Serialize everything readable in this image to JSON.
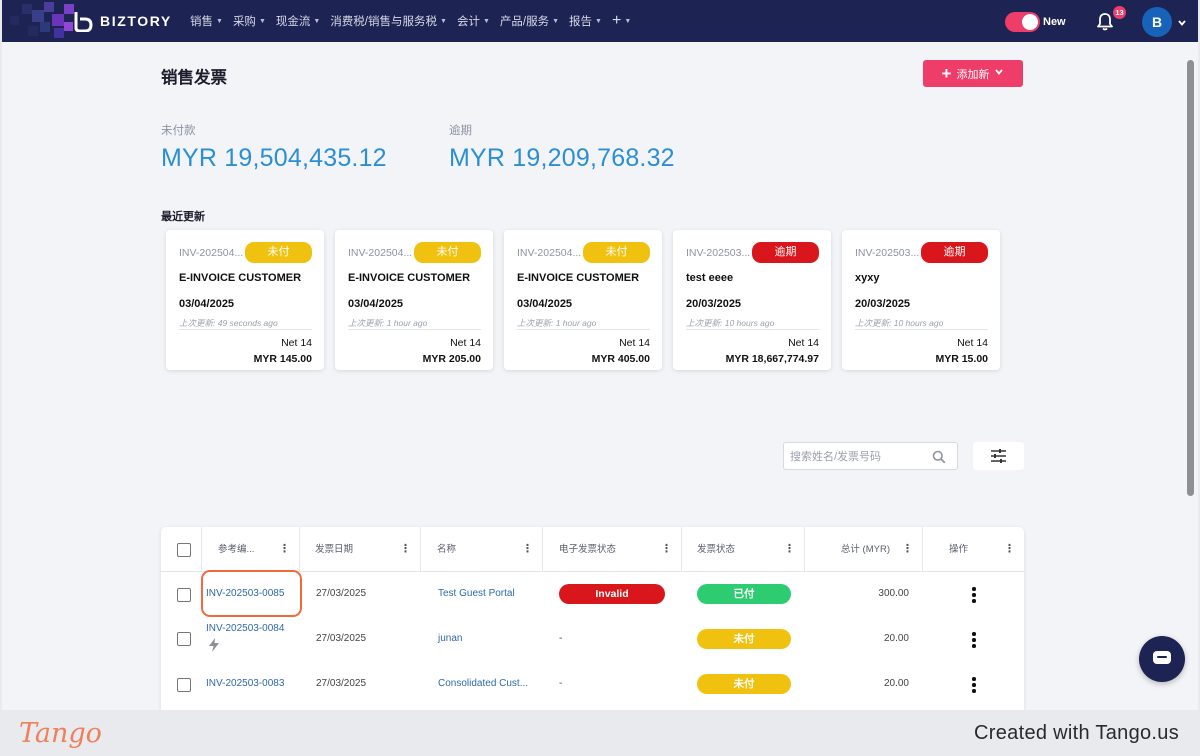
{
  "app": {
    "brand": "BIZTORY"
  },
  "nav": {
    "items": [
      {
        "label": "销售"
      },
      {
        "label": "采购"
      },
      {
        "label": "现金流"
      },
      {
        "label": "消费税/销售与服务税"
      },
      {
        "label": "会计"
      },
      {
        "label": "产品/服务"
      },
      {
        "label": "报告"
      }
    ],
    "toggle_label": "New",
    "notification_count": "13",
    "avatar_initial": "B"
  },
  "page": {
    "title": "销售发票",
    "add_button_label": "添加新"
  },
  "stats": {
    "unpaid_label": "未付款",
    "unpaid_value": "MYR 19,504,435.12",
    "overdue_label": "逾期",
    "overdue_value": "MYR 19,209,768.32"
  },
  "recent": {
    "label": "最近更新",
    "cards": [
      {
        "number": "INV-202504...",
        "status": "未付",
        "status_color": "#f0c10f",
        "customer": "E-INVOICE CUSTOMER",
        "date": "03/04/2025",
        "updated": "上次更新: 49 seconds ago",
        "terms": "Net 14",
        "amount": "MYR 145.00"
      },
      {
        "number": "INV-202504...",
        "status": "未付",
        "status_color": "#f0c10f",
        "customer": "E-INVOICE CUSTOMER",
        "date": "03/04/2025",
        "updated": "上次更新: 1 hour ago",
        "terms": "Net 14",
        "amount": "MYR 205.00"
      },
      {
        "number": "INV-202504...",
        "status": "未付",
        "status_color": "#f0c10f",
        "customer": "E-INVOICE CUSTOMER",
        "date": "03/04/2025",
        "updated": "上次更新: 1 hour ago",
        "terms": "Net 14",
        "amount": "MYR 405.00"
      },
      {
        "number": "INV-202503...",
        "status": "逾期",
        "status_color": "#d8161b",
        "customer": "test eeee",
        "date": "20/03/2025",
        "updated": "上次更新: 10 hours ago",
        "terms": "Net 14",
        "amount": "MYR 18,667,774.97"
      },
      {
        "number": "INV-202503...",
        "status": "逾期",
        "status_color": "#d8161b",
        "customer": "xyxy",
        "date": "20/03/2025",
        "updated": "上次更新: 10 hours ago",
        "terms": "Net 14",
        "amount": "MYR 15.00"
      }
    ]
  },
  "search": {
    "placeholder": "搜索姓名/发票号码"
  },
  "table": {
    "headers": {
      "ref": "参考编...",
      "date": "发票日期",
      "name": "名称",
      "einvoice": "电子发票状态",
      "status": "发票状态",
      "total": "总计 (MYR)",
      "actions": "操作"
    },
    "rows": [
      {
        "ref": "INV-202503-0085",
        "date": "27/03/2025",
        "name": "Test Guest Portal",
        "einvoice": "Invalid",
        "einvoice_color": "#d8161b",
        "status": "已付",
        "status_color": "#2ecc71",
        "total": "300.00"
      },
      {
        "ref": "INV-202503-0084",
        "date": "27/03/2025",
        "name": "junan",
        "einvoice": "-",
        "status": "未付",
        "status_color": "#f0c10f",
        "total": "20.00"
      },
      {
        "ref": "INV-202503-0083",
        "date": "27/03/2025",
        "name": "Consolidated Cust...",
        "einvoice": "-",
        "status": "未付",
        "status_color": "#f0c10f",
        "total": "20.00"
      }
    ]
  },
  "footer": {
    "tango_logo": "Tango",
    "created_with": "Created with Tango.us"
  },
  "colors": {
    "nav_bg": "#1d2352",
    "accent": "#ef3d6a",
    "link": "#2f6aa8",
    "stat_value": "#2b8fd6"
  }
}
